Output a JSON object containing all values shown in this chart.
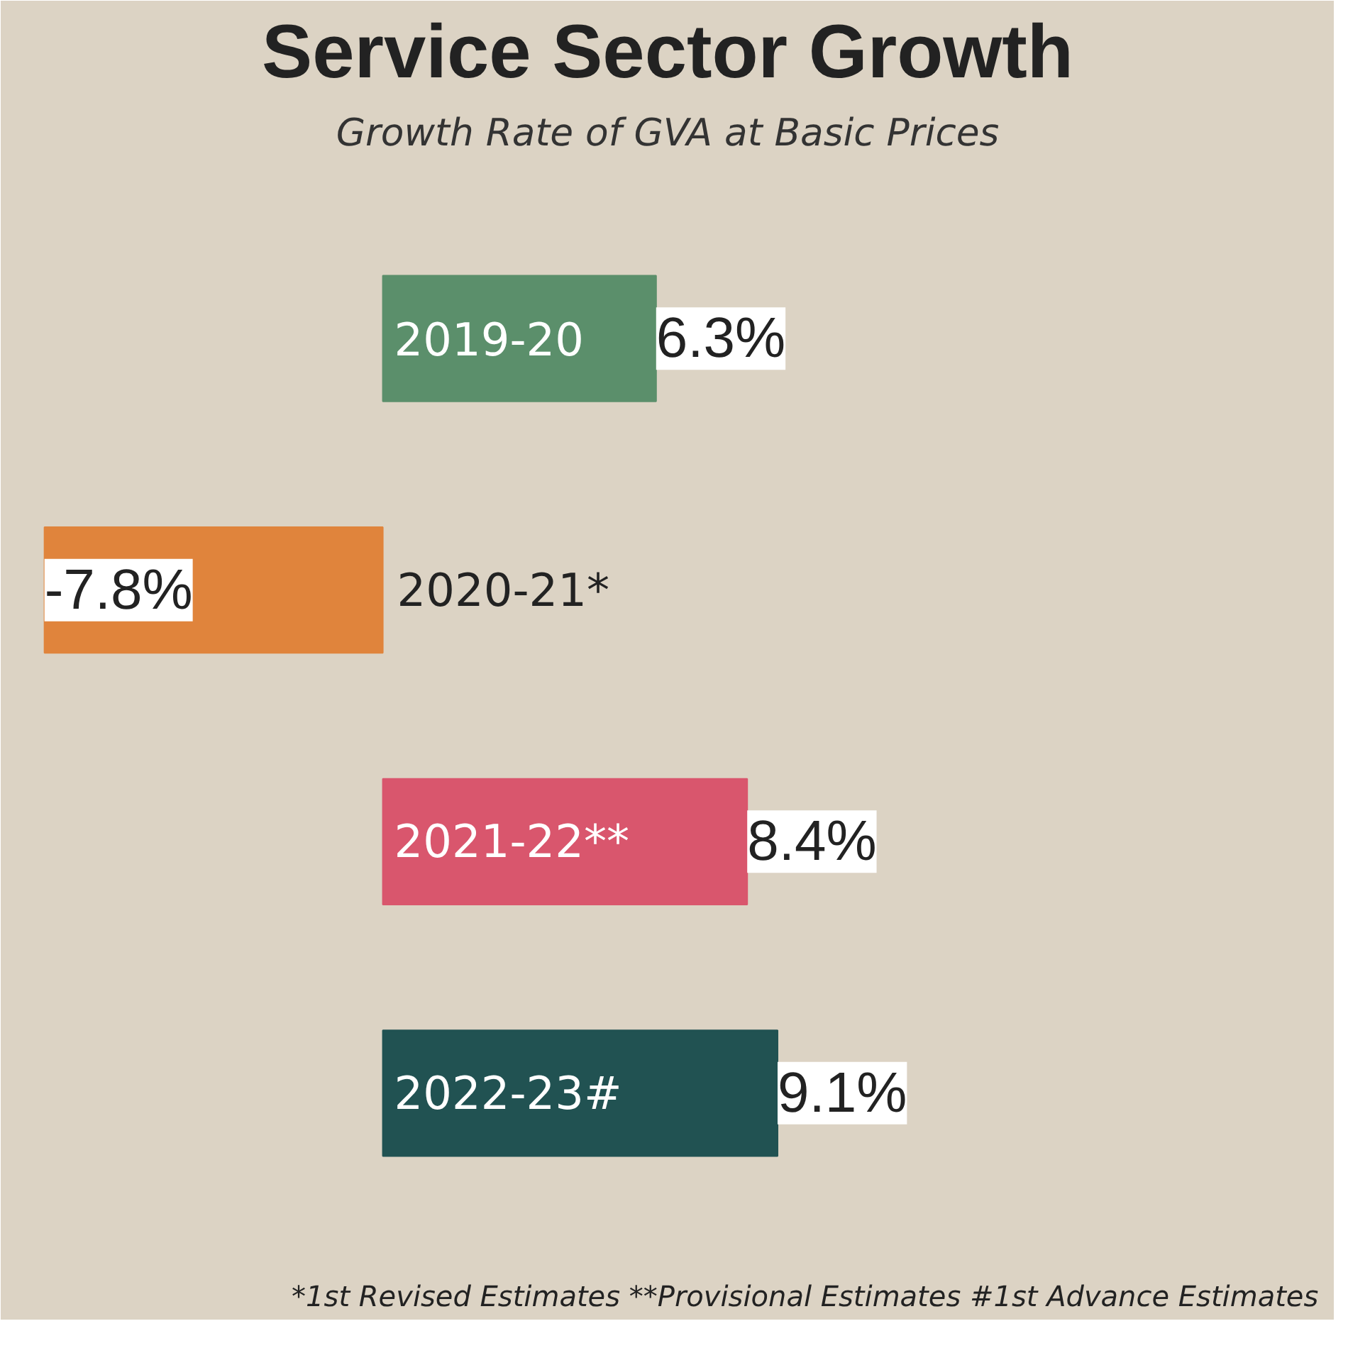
{
  "chart_data": {
    "type": "bar",
    "orientation": "horizontal",
    "title": "Service Sector Growth",
    "subtitle": "Growth Rate of GVA at Basic Prices",
    "categories": [
      "2019-20",
      "2020-21*",
      "2021-22**",
      "2022-23#"
    ],
    "values": [
      6.3,
      -7.8,
      8.4,
      9.1
    ],
    "colors": [
      "#5b8f6b",
      "#e0843c",
      "#d9566d",
      "#215252"
    ],
    "value_labels": [
      "6.3%",
      "-7.8%",
      "8.4%",
      "9.1%"
    ],
    "annotations": [
      "*1st Revised Estimates **Provisional Estimates  #1st Advance Estimates"
    ]
  }
}
